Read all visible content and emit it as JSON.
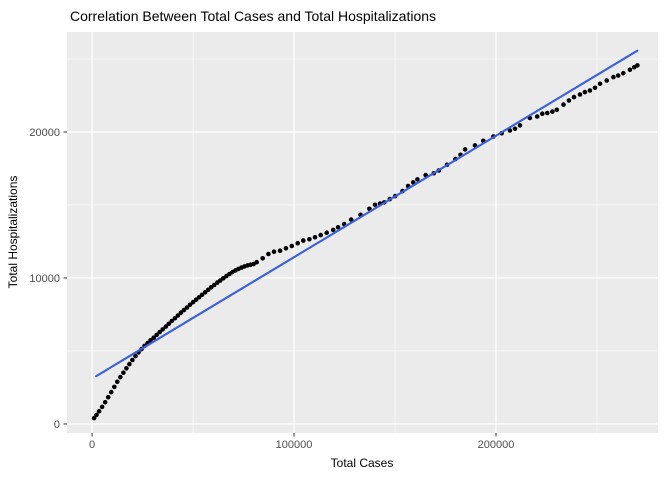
{
  "chart_data": {
    "type": "scatter",
    "title": "Correlation Between Total Cases and Total Hospitalizations",
    "xlabel": "Total Cases",
    "ylabel": "Total Hospitalizations",
    "legend": false,
    "grid": true,
    "theme": "ggplot-gray",
    "panel_background": "#EBEBEB",
    "gridline_color": "#FFFFFF",
    "tick_color": "#333333",
    "tick_label_color": "#4d4d4d",
    "point_color": "#000000",
    "xlim": [
      -12400,
      280200
    ],
    "ylim": [
      -620,
      26850
    ],
    "x_ticks": [
      0,
      100000,
      200000
    ],
    "x_minor_ticks": [
      50000,
      150000,
      250000
    ],
    "y_ticks": [
      0,
      10000,
      20000
    ],
    "y_minor_ticks": [
      5000,
      15000,
      25000
    ],
    "trend_line": {
      "name": "linear-fit-line",
      "color": "#3A5FDF",
      "x1": 2000,
      "y1": 3270,
      "x2": 270000,
      "y2": 25570
    },
    "points": [
      [
        1000,
        400
      ],
      [
        2200,
        620
      ],
      [
        3500,
        870
      ],
      [
        5000,
        1170
      ],
      [
        6500,
        1490
      ],
      [
        8000,
        1830
      ],
      [
        9500,
        2180
      ],
      [
        11000,
        2540
      ],
      [
        12500,
        2890
      ],
      [
        14000,
        3210
      ],
      [
        15500,
        3510
      ],
      [
        17000,
        3810
      ],
      [
        18500,
        4100
      ],
      [
        20000,
        4380
      ],
      [
        21500,
        4650
      ],
      [
        23000,
        4900
      ],
      [
        24500,
        5130
      ],
      [
        26000,
        5350
      ],
      [
        27500,
        5540
      ],
      [
        29000,
        5730
      ],
      [
        30500,
        5910
      ],
      [
        32000,
        6100
      ],
      [
        33500,
        6290
      ],
      [
        35000,
        6480
      ],
      [
        36500,
        6670
      ],
      [
        38000,
        6860
      ],
      [
        39500,
        7050
      ],
      [
        41000,
        7240
      ],
      [
        42500,
        7430
      ],
      [
        44000,
        7620
      ],
      [
        45500,
        7800
      ],
      [
        47000,
        7980
      ],
      [
        48500,
        8160
      ],
      [
        50000,
        8340
      ],
      [
        51500,
        8510
      ],
      [
        53000,
        8680
      ],
      [
        54500,
        8850
      ],
      [
        56000,
        9020
      ],
      [
        57500,
        9190
      ],
      [
        59000,
        9360
      ],
      [
        60500,
        9520
      ],
      [
        62000,
        9680
      ],
      [
        63500,
        9830
      ],
      [
        65000,
        9980
      ],
      [
        66500,
        10130
      ],
      [
        68000,
        10270
      ],
      [
        69500,
        10400
      ],
      [
        71000,
        10520
      ],
      [
        72500,
        10620
      ],
      [
        74000,
        10710
      ],
      [
        75500,
        10790
      ],
      [
        77000,
        10860
      ],
      [
        78500,
        10910
      ],
      [
        80000,
        10960
      ],
      [
        81500,
        11080
      ],
      [
        84500,
        11350
      ],
      [
        87300,
        11640
      ],
      [
        90100,
        11800
      ],
      [
        93100,
        11870
      ],
      [
        96000,
        12030
      ],
      [
        98900,
        12190
      ],
      [
        101800,
        12380
      ],
      [
        104600,
        12560
      ],
      [
        107600,
        12650
      ],
      [
        110400,
        12790
      ],
      [
        113200,
        12940
      ],
      [
        116200,
        13100
      ],
      [
        119400,
        13290
      ],
      [
        121800,
        13470
      ],
      [
        124800,
        13700
      ],
      [
        128300,
        14000
      ],
      [
        132900,
        14330
      ],
      [
        137300,
        14740
      ],
      [
        140100,
        15010
      ],
      [
        142600,
        15100
      ],
      [
        144700,
        15180
      ],
      [
        147400,
        15400
      ],
      [
        150100,
        15610
      ],
      [
        153700,
        15950
      ],
      [
        156500,
        16300
      ],
      [
        159000,
        16550
      ],
      [
        161100,
        16750
      ],
      [
        165200,
        17050
      ],
      [
        169200,
        17180
      ],
      [
        171700,
        17360
      ],
      [
        175800,
        17750
      ],
      [
        179900,
        18140
      ],
      [
        182400,
        18440
      ],
      [
        184700,
        18810
      ],
      [
        189600,
        19080
      ],
      [
        193700,
        19400
      ],
      [
        198700,
        19690
      ],
      [
        202800,
        19910
      ],
      [
        206900,
        20100
      ],
      [
        209400,
        20220
      ],
      [
        211900,
        20450
      ],
      [
        216800,
        20960
      ],
      [
        220400,
        21060
      ],
      [
        222900,
        21250
      ],
      [
        225400,
        21300
      ],
      [
        227900,
        21400
      ],
      [
        230100,
        21520
      ],
      [
        233400,
        21880
      ],
      [
        236100,
        22160
      ],
      [
        238600,
        22390
      ],
      [
        241600,
        22570
      ],
      [
        244000,
        22730
      ],
      [
        246500,
        22840
      ],
      [
        249000,
        23030
      ],
      [
        251500,
        23300
      ],
      [
        254800,
        23530
      ],
      [
        258100,
        23760
      ],
      [
        260500,
        23870
      ],
      [
        263000,
        24030
      ],
      [
        266300,
        24260
      ],
      [
        268400,
        24440
      ],
      [
        270000,
        24560
      ]
    ]
  }
}
